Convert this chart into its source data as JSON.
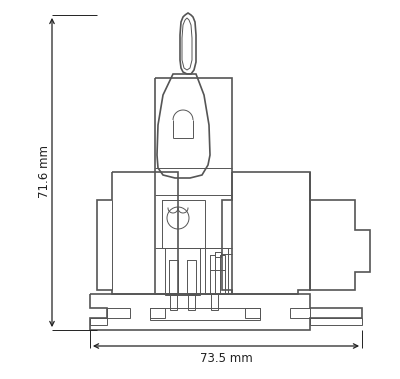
{
  "background_color": "#ffffff",
  "line_color": "#555555",
  "dim_color": "#222222",
  "lw1": 1.2,
  "lw2": 0.7,
  "dim_height_text": "71.6 mm",
  "dim_width_text": "73.5 mm",
  "figsize": [
    4.0,
    3.79
  ],
  "dpi": 100
}
